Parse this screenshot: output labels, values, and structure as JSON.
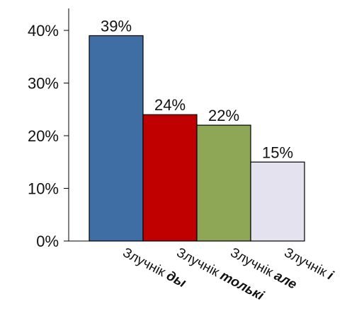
{
  "chart_data": {
    "type": "bar",
    "categories": [
      {
        "prefix": "Злучнік",
        "word": "ды"
      },
      {
        "prefix": "Злучнік",
        "word": "толькі"
      },
      {
        "prefix": "Злучнік",
        "word": "але"
      },
      {
        "prefix": "Злучнік",
        "word": "і"
      }
    ],
    "values": [
      39,
      24,
      22,
      15
    ],
    "value_labels": [
      "39%",
      "24%",
      "22%",
      "15%"
    ],
    "colors": [
      "#3e6ea3",
      "#c00000",
      "#8ea756",
      "#e4e2ef"
    ],
    "y_ticks": [
      {
        "value": 0,
        "label": "0%"
      },
      {
        "value": 10,
        "label": "10%"
      },
      {
        "value": 20,
        "label": "20%"
      },
      {
        "value": 30,
        "label": "30%"
      },
      {
        "value": 40,
        "label": "40%"
      }
    ],
    "ylim": [
      0,
      44
    ],
    "grid": false,
    "legend": false,
    "title": "",
    "xlabel": "",
    "ylabel": ""
  }
}
